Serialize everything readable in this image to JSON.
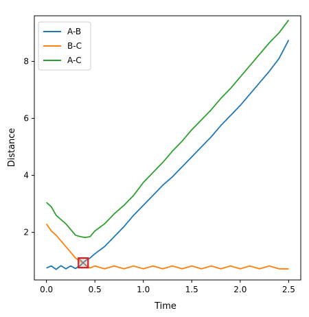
{
  "chart_data": {
    "type": "line",
    "title": "",
    "xlabel": "Time",
    "ylabel": "Distance",
    "xlim": [
      -0.125,
      2.625
    ],
    "ylim": [
      0.33,
      9.6
    ],
    "xticks": [
      0.0,
      0.5,
      1.0,
      1.5,
      2.0,
      2.5
    ],
    "xtick_labels": [
      "0.0",
      "0.5",
      "1.0",
      "1.5",
      "2.0",
      "2.5"
    ],
    "yticks": [
      2,
      4,
      6,
      8
    ],
    "ytick_labels": [
      "2",
      "4",
      "6",
      "8"
    ],
    "grid": false,
    "legend_position": "upper-left",
    "series": [
      {
        "name": "A-B",
        "color": "#1f77b4",
        "x": [
          0.0,
          0.05,
          0.1,
          0.15,
          0.2,
          0.25,
          0.3,
          0.35,
          0.38,
          0.45,
          0.5,
          0.6,
          0.7,
          0.8,
          0.9,
          1.0,
          1.1,
          1.2,
          1.3,
          1.4,
          1.5,
          1.6,
          1.7,
          1.8,
          1.9,
          2.0,
          2.1,
          2.2,
          2.3,
          2.4,
          2.5
        ],
        "y": [
          0.75,
          0.82,
          0.7,
          0.83,
          0.72,
          0.82,
          0.73,
          0.85,
          0.95,
          1.1,
          1.25,
          1.5,
          1.85,
          2.2,
          2.6,
          2.95,
          3.3,
          3.65,
          3.95,
          4.3,
          4.65,
          5.0,
          5.35,
          5.75,
          6.1,
          6.45,
          6.85,
          7.25,
          7.65,
          8.1,
          8.75
        ]
      },
      {
        "name": "B-C",
        "color": "#ff7f0e",
        "x": [
          0.0,
          0.05,
          0.1,
          0.15,
          0.2,
          0.25,
          0.3,
          0.35,
          0.38,
          0.45,
          0.5,
          0.6,
          0.7,
          0.8,
          0.9,
          1.0,
          1.1,
          1.2,
          1.3,
          1.4,
          1.5,
          1.6,
          1.7,
          1.8,
          1.9,
          2.0,
          2.1,
          2.2,
          2.3,
          2.4,
          2.5
        ],
        "y": [
          2.3,
          2.05,
          1.9,
          1.7,
          1.5,
          1.3,
          1.1,
          0.98,
          0.92,
          0.75,
          0.82,
          0.72,
          0.82,
          0.72,
          0.82,
          0.72,
          0.82,
          0.72,
          0.82,
          0.72,
          0.82,
          0.72,
          0.82,
          0.72,
          0.82,
          0.72,
          0.82,
          0.72,
          0.82,
          0.72,
          0.72
        ]
      },
      {
        "name": "A-C",
        "color": "#2ca02c",
        "x": [
          0.0,
          0.05,
          0.1,
          0.15,
          0.2,
          0.25,
          0.3,
          0.35,
          0.4,
          0.45,
          0.5,
          0.6,
          0.7,
          0.8,
          0.9,
          1.0,
          1.1,
          1.2,
          1.3,
          1.4,
          1.5,
          1.6,
          1.7,
          1.8,
          1.9,
          2.0,
          2.1,
          2.2,
          2.3,
          2.4,
          2.5
        ],
        "y": [
          3.05,
          2.9,
          2.6,
          2.45,
          2.3,
          2.1,
          1.9,
          1.85,
          1.82,
          1.85,
          2.05,
          2.3,
          2.65,
          2.95,
          3.3,
          3.75,
          4.1,
          4.45,
          4.85,
          5.2,
          5.6,
          5.95,
          6.3,
          6.7,
          7.05,
          7.45,
          7.85,
          8.25,
          8.65,
          9.0,
          9.45
        ]
      }
    ],
    "annotations": [
      {
        "type": "marker-box",
        "x": 0.38,
        "y": 0.93,
        "color": "#e41a1c"
      }
    ]
  }
}
